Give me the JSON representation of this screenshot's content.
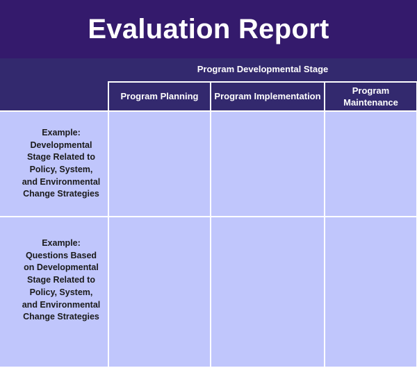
{
  "document": {
    "title": "Evaluation Report",
    "stage_header": "Program Developmental Stage",
    "columns": [
      {
        "label": "Program Planning"
      },
      {
        "label": "Program Implementation"
      },
      {
        "label": "Program\nMaintenance"
      }
    ],
    "rows": [
      {
        "label": "Example:\nDevelopmental\nStage Related to\nPolicy, System,\nand Environmental\nChange Strategies",
        "cells": [
          "",
          "",
          ""
        ]
      },
      {
        "label": "Example:\nQuestions Based\non Developmental\nStage Related to\nPolicy, System,\nand Environmental\nChange Strategies",
        "cells": [
          "",
          "",
          ""
        ]
      }
    ]
  },
  "colors": {
    "title_bg": "#341a6c",
    "header_bg": "#33296e",
    "cell_bg": "#c0c6fc",
    "grid_line": "#ffffff"
  }
}
